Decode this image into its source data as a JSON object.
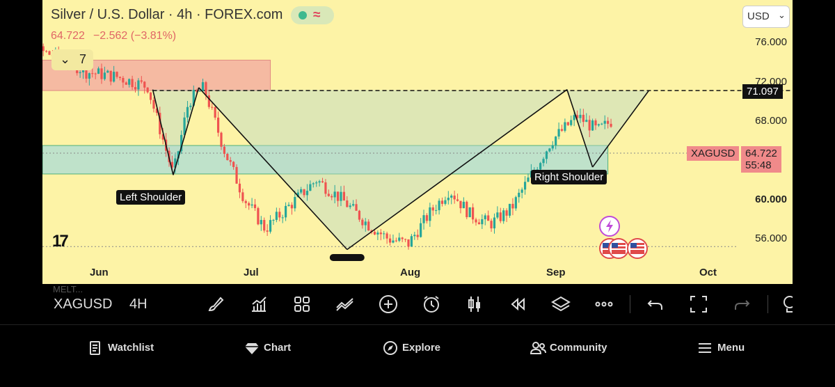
{
  "header": {
    "title": "Silver / U.S. Dollar · 4h · FOREX.com",
    "price": "64.722",
    "change": "−2.562 (−3.81%)",
    "indicator_count": "7"
  },
  "currency_selector": {
    "value": "USD"
  },
  "chart_data": {
    "type": "candlestick",
    "symbol": "XAGUSD",
    "x_ticks": [
      "Jun",
      "Jul",
      "Aug",
      "Sep",
      "Oct"
    ],
    "y_ticks": [
      "76.000",
      "72.000",
      "68.000",
      "60.000",
      "56.000"
    ],
    "ylim": [
      54.5,
      78.5
    ],
    "last_price": 64.722,
    "countdown": "55:48",
    "neckline_price": 71.097,
    "neckline_label": "71.097",
    "annotations": [
      "Left Shoulder",
      "Right Shoulder"
    ],
    "pattern_points": [
      {
        "date": "2025-06-11",
        "price": 71.2
      },
      {
        "date": "2025-06-15",
        "price": 62.5
      },
      {
        "date": "2025-06-20",
        "price": 71.4
      },
      {
        "date": "2025-07-19",
        "price": 54.9
      },
      {
        "date": "2025-08-31",
        "price": 71.2
      },
      {
        "date": "2025-09-05",
        "price": 63.3
      },
      {
        "date": "2025-09-16",
        "price": 71.1
      }
    ],
    "zones": [
      {
        "name": "supply",
        "from_date": "2025-05-20",
        "to_date": "2025-07-04",
        "low": 71.1,
        "high": 74.2,
        "color": "#f2a7a0"
      },
      {
        "name": "demand",
        "from_date": "2025-05-20",
        "to_date": "2025-09-08",
        "low": 62.6,
        "high": 65.5,
        "color": "#a9dcd6"
      }
    ],
    "colors": {
      "up": "#26a69a",
      "down": "#ef5350",
      "background": "#fdf3a6",
      "neckline": "#111111"
    }
  },
  "toolbar": {
    "symbol": "XAGUSD",
    "timeframe": "4H",
    "background_text": "MELT..."
  },
  "bottom_nav": [
    {
      "label": "Watchlist",
      "icon": "watchlist-icon"
    },
    {
      "label": "Chart",
      "icon": "diamond-icon"
    },
    {
      "label": "Explore",
      "icon": "compass-icon"
    },
    {
      "label": "Community",
      "icon": "users-icon"
    },
    {
      "label": "Menu",
      "icon": "hamburger-icon"
    }
  ]
}
